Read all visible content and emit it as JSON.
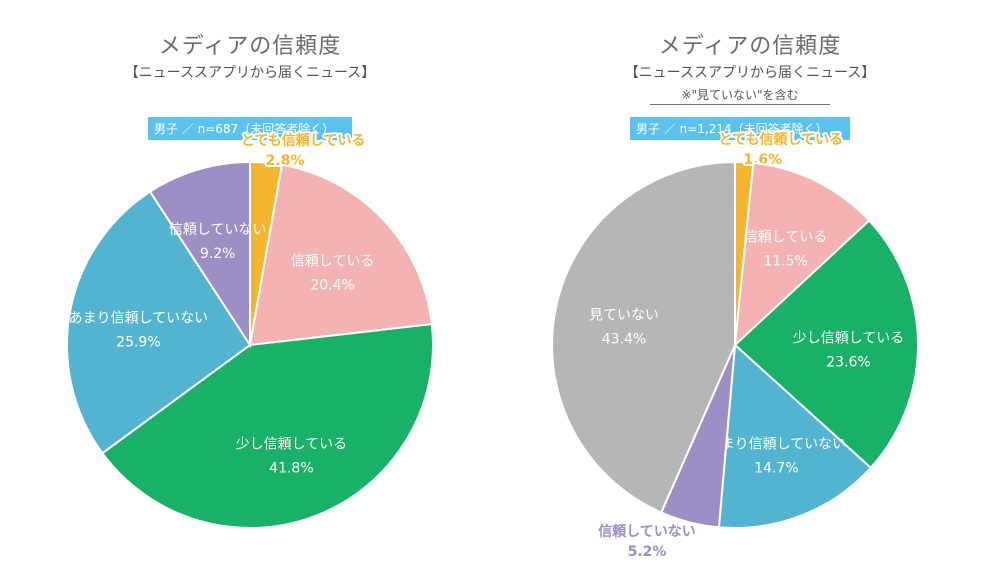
{
  "colors": {
    "very_trust": "#f6b52e",
    "trust": "#f4b2b2",
    "somewhat_trust": "#19b067",
    "not_much_trust": "#52b4d0",
    "no_trust": "#9d8ec5",
    "not_watched": "#b6b6b6",
    "n_box": "#5bc1ef"
  },
  "chart_data": [
    {
      "type": "pie",
      "title": "メディアの信頼度",
      "subtitle": "【ニューススアプリから届くニュース】",
      "note": "",
      "n_label": "男子 ／ n=687（未回答者除く）",
      "slices": [
        {
          "key": "very_trust",
          "label": "とても信頼している",
          "value": 2.8,
          "value_label": "2.8%",
          "color": "#f6b52e",
          "label_style": "outside"
        },
        {
          "key": "trust",
          "label": "信頼している",
          "value": 20.4,
          "value_label": "20.4%",
          "color": "#f4b2b2",
          "label_style": "inside"
        },
        {
          "key": "somewhat_trust",
          "label": "少し信頼している",
          "value": 41.8,
          "value_label": "41.8%",
          "color": "#19b067",
          "label_style": "inside"
        },
        {
          "key": "not_much_trust",
          "label": "あまり信頼していない",
          "value": 25.9,
          "value_label": "25.9%",
          "color": "#52b4d0",
          "label_style": "inside"
        },
        {
          "key": "no_trust",
          "label": "信頼していない",
          "value": 9.2,
          "value_label": "9.2%",
          "color": "#9d8ec5",
          "label_style": "inside"
        }
      ]
    },
    {
      "type": "pie",
      "title": "メディアの信頼度",
      "subtitle": "【ニューススアプリから届くニュース】",
      "note": "※\"見ていない\"を含む",
      "n_label": "男子 ／ n=1,214（未回答者除く）",
      "slices": [
        {
          "key": "very_trust",
          "label": "とても信頼している",
          "value": 1.6,
          "value_label": "1.6%",
          "color": "#f6b52e",
          "label_style": "outside"
        },
        {
          "key": "trust",
          "label": "信頼している",
          "value": 11.5,
          "value_label": "11.5%",
          "color": "#f4b2b2",
          "label_style": "inside"
        },
        {
          "key": "somewhat_trust",
          "label": "少し信頼している",
          "value": 23.6,
          "value_label": "23.6%",
          "color": "#19b067",
          "label_style": "inside"
        },
        {
          "key": "not_much_trust",
          "label": "あまり信頼していない",
          "value": 14.7,
          "value_label": "14.7%",
          "color": "#52b4d0",
          "label_style": "inside"
        },
        {
          "key": "no_trust",
          "label": "信頼していない",
          "value": 5.2,
          "value_label": "5.2%",
          "color": "#9d8ec5",
          "label_style": "outside"
        },
        {
          "key": "not_watched",
          "label": "見ていない",
          "value": 43.4,
          "value_label": "43.4%",
          "color": "#b6b6b6",
          "label_style": "inside"
        }
      ]
    }
  ]
}
